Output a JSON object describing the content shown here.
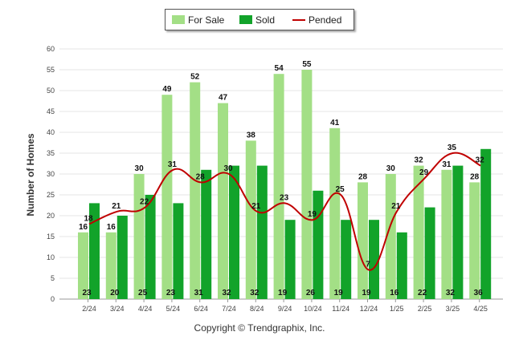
{
  "chart_data": {
    "type": "bar",
    "categories": [
      "2/24",
      "3/24",
      "4/24",
      "5/24",
      "6/24",
      "7/24",
      "8/24",
      "9/24",
      "10/24",
      "11/24",
      "12/24",
      "1/25",
      "2/25",
      "3/25",
      "4/25"
    ],
    "series": [
      {
        "name": "For Sale",
        "type": "bar",
        "color": "#a3df86",
        "values": [
          16,
          16,
          30,
          49,
          52,
          47,
          38,
          54,
          55,
          41,
          28,
          30,
          32,
          31,
          28
        ]
      },
      {
        "name": "Sold",
        "type": "bar",
        "color": "#12a32a",
        "values": [
          23,
          20,
          25,
          23,
          31,
          32,
          32,
          19,
          26,
          19,
          19,
          16,
          22,
          32,
          36
        ]
      },
      {
        "name": "Pended",
        "type": "line",
        "color": "#c00000",
        "values": [
          18,
          21,
          22,
          31,
          28,
          30,
          21,
          23,
          19,
          25,
          7,
          21,
          29,
          35,
          32
        ]
      }
    ],
    "ylabel": "Number of Homes",
    "ylim": [
      0,
      60
    ],
    "yticks": [
      0,
      5,
      10,
      15,
      20,
      25,
      30,
      35,
      40,
      45,
      50,
      55,
      60
    ],
    "legend_position": "top-center"
  },
  "copyright": "Copyright © Trendgraphix, Inc."
}
